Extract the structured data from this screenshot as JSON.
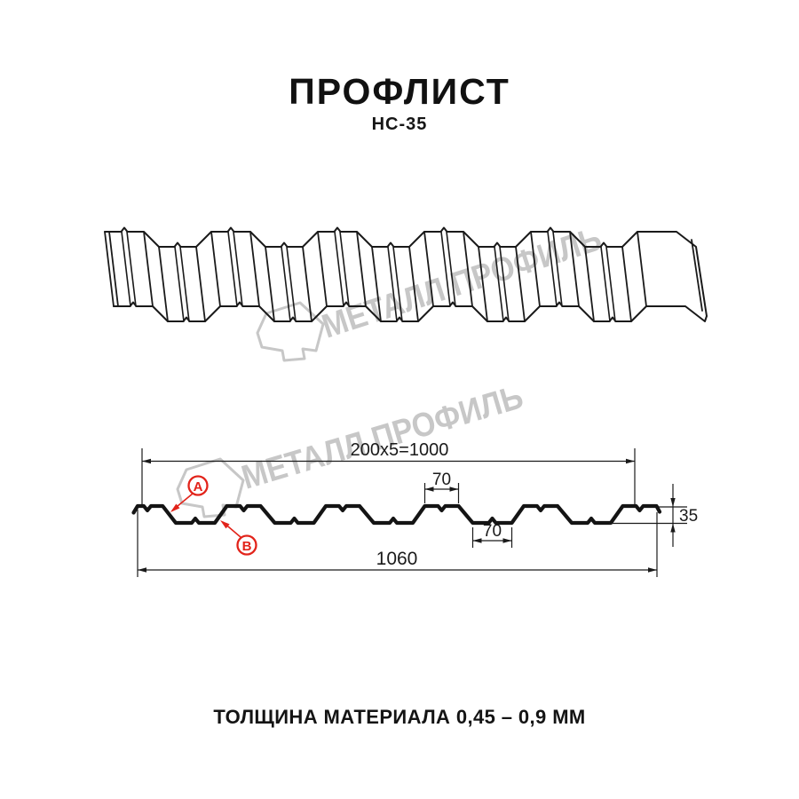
{
  "header": {
    "title": "ПРОФЛИСТ",
    "subtitle": "НС-35"
  },
  "watermark": {
    "text": "МЕТАЛЛ ПРОФИЛЬ",
    "color": "#c7c7c7"
  },
  "drawing": {
    "line_color": "#1a1a1a",
    "section_color": "#141414",
    "accent_color": "#e2231a",
    "marker_a": "A",
    "marker_b": "B",
    "dims": {
      "working_width": "200x5=1000",
      "crest_width": "70",
      "valley_width": "70",
      "profile_height": "35",
      "overall_width": "1060"
    }
  },
  "footer": {
    "material_thickness": "ТОЛЩИНА МАТЕРИАЛА 0,45 – 0,9 ММ"
  }
}
